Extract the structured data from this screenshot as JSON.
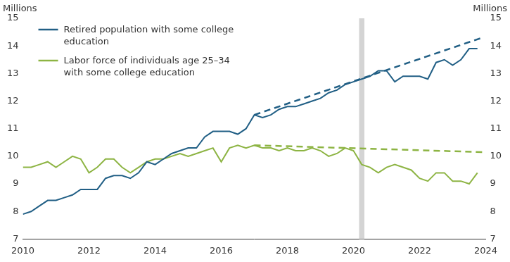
{
  "chart_data": {
    "type": "line",
    "ylabel": "Millions",
    "y2label": "Millions",
    "xlim": [
      2010,
      2024
    ],
    "xticks": [
      2010,
      2012,
      2014,
      2016,
      2018,
      2020,
      2022,
      2024
    ],
    "ylim": [
      7,
      15
    ],
    "yticks": [
      7,
      8,
      9,
      10,
      11,
      12,
      13,
      14,
      15
    ],
    "y2lim": [
      7,
      15
    ],
    "y2ticks": [
      7,
      8,
      9,
      10,
      11,
      12,
      13,
      14,
      15
    ],
    "grid": false,
    "legend": "upper left",
    "shaded_regions": [
      [
        2020.17,
        2020.33
      ]
    ],
    "x": [
      2010,
      2010.25,
      2010.5,
      2010.75,
      2011,
      2011.25,
      2011.5,
      2011.75,
      2012,
      2012.25,
      2012.5,
      2012.75,
      2013,
      2013.25,
      2013.5,
      2013.75,
      2014,
      2014.25,
      2014.5,
      2014.75,
      2015,
      2015.25,
      2015.5,
      2015.75,
      2016,
      2016.25,
      2016.5,
      2016.75,
      2017,
      2017.25,
      2017.5,
      2017.75,
      2018,
      2018.25,
      2018.5,
      2018.75,
      2019,
      2019.25,
      2019.5,
      2019.75,
      2020,
      2020.25,
      2020.5,
      2020.75,
      2021,
      2021.25,
      2021.5,
      2021.75,
      2022,
      2022.25,
      2022.5,
      2022.75,
      2023,
      2023.25,
      2023.5,
      2023.75
    ],
    "series": [
      {
        "name": "Retired population with some college education",
        "color": "#215f85",
        "line_style": "solid",
        "values": [
          7.9,
          8.0,
          8.2,
          8.4,
          8.4,
          8.5,
          8.6,
          8.8,
          8.8,
          8.8,
          9.2,
          9.3,
          9.3,
          9.2,
          9.4,
          9.8,
          9.7,
          9.9,
          10.1,
          10.2,
          10.3,
          10.3,
          10.7,
          10.9,
          10.9,
          10.9,
          10.8,
          11.0,
          11.5,
          11.4,
          11.5,
          11.7,
          11.8,
          11.8,
          11.9,
          12.0,
          12.1,
          12.3,
          12.4,
          12.6,
          12.7,
          12.8,
          12.9,
          13.1,
          13.1,
          12.7,
          12.9,
          12.9,
          12.9,
          12.8,
          13.4,
          13.5,
          13.3,
          13.5,
          13.9,
          13.9
        ]
      },
      {
        "name": "Labor force of individuals age 25–34 with some college education",
        "color": "#8db443",
        "line_style": "solid",
        "values": [
          9.6,
          9.6,
          9.7,
          9.8,
          9.6,
          9.8,
          10.0,
          9.9,
          9.4,
          9.6,
          9.9,
          9.9,
          9.6,
          9.4,
          9.6,
          9.8,
          9.9,
          9.9,
          10.0,
          10.1,
          10.0,
          10.1,
          10.2,
          10.3,
          9.8,
          10.3,
          10.4,
          10.3,
          10.4,
          10.3,
          10.3,
          10.2,
          10.3,
          10.2,
          10.2,
          10.3,
          10.2,
          10.0,
          10.1,
          10.3,
          10.2,
          9.7,
          9.6,
          9.4,
          9.6,
          9.7,
          9.6,
          9.5,
          9.2,
          9.1,
          9.4,
          9.4,
          9.1,
          9.1,
          9.0,
          9.4
        ]
      },
      {
        "color": "#215f85",
        "line_style": "dashed",
        "x": [
          2017,
          2023.9
        ],
        "values": [
          11.5,
          14.3
        ]
      },
      {
        "color": "#8db443",
        "line_style": "dashed",
        "x": [
          2017,
          2023.9
        ],
        "values": [
          10.4,
          10.15
        ]
      }
    ]
  }
}
